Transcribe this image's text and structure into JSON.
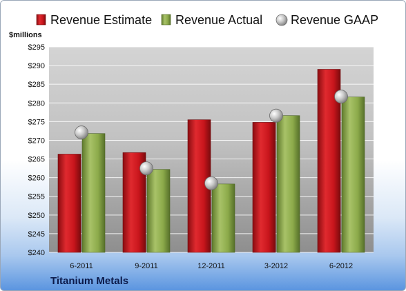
{
  "chart_data": {
    "type": "bar",
    "ylabel": "$millions",
    "ylim": [
      240,
      295
    ],
    "yticks": [
      "$240",
      "$245",
      "$250",
      "$255",
      "$260",
      "$265",
      "$270",
      "$275",
      "$280",
      "$285",
      "$290",
      "$295"
    ],
    "categories": [
      "6-2011",
      "9-2011",
      "12-2011",
      "3-2012",
      "6-2012"
    ],
    "series": [
      {
        "name": "Revenue Estimate",
        "kind": "bar",
        "values": [
          266.3,
          266.7,
          275.5,
          274.8,
          289.0
        ]
      },
      {
        "name": "Revenue Actual",
        "kind": "bar",
        "values": [
          271.8,
          262.2,
          258.3,
          276.6,
          281.6
        ]
      },
      {
        "name": "Revenue GAAP",
        "kind": "scatter",
        "values": [
          272.1,
          262.5,
          258.5,
          276.6,
          281.7
        ]
      }
    ],
    "legend_position": "top",
    "grid": true
  },
  "company": "Titanium Metals",
  "colors": {
    "estimate": "#c8151c",
    "actual": "#8caa4a",
    "gaap": "#c0c0c0"
  }
}
